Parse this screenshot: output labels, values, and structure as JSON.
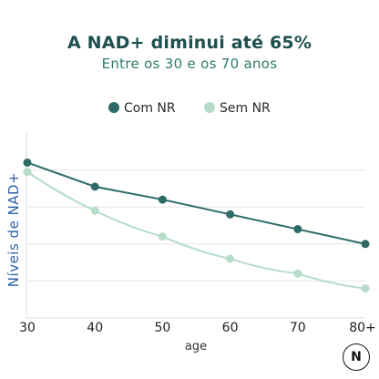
{
  "chart_data": {
    "type": "line",
    "title": "A NAD+ diminui até 65%",
    "subtitle": "Entre os 30 e os 70 anos",
    "xlabel": "age",
    "ylabel": "Níveis de NAD+",
    "categories": [
      "30",
      "40",
      "50",
      "60",
      "70",
      "80+"
    ],
    "ylim": [
      0,
      100
    ],
    "grid": "horizontal",
    "legend_position": "top",
    "series": [
      {
        "name": "Com NR",
        "color": "#2e6b66",
        "values": [
          84,
          71,
          64,
          56,
          48,
          40
        ]
      },
      {
        "name": "Sem NR",
        "color": "#b5dcc9",
        "values": [
          79,
          58,
          44,
          32,
          24,
          16
        ]
      }
    ]
  },
  "logo": {
    "letter": "N"
  }
}
